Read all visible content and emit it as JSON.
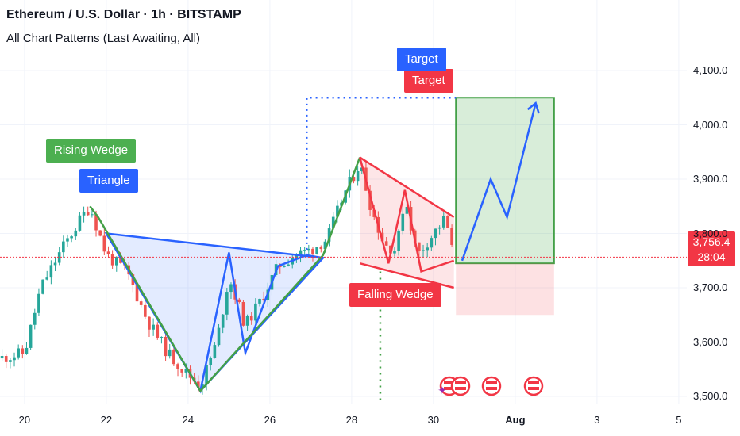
{
  "header": {
    "title": "Ethereum / U.S. Dollar · 1h · BITSTAMP",
    "subtitle": "All Chart Patterns (Last Awaiting, All)"
  },
  "labels": {
    "rising_wedge": "Rising Wedge",
    "triangle": "Triangle",
    "falling_wedge": "Falling Wedge",
    "target_blue": "Target",
    "target_red": "Target"
  },
  "price_tag": {
    "price": "3,756.4",
    "countdown": "28:04"
  },
  "colors": {
    "up": "#26a69a",
    "down": "#ef5350",
    "triangle": "#2962ff",
    "triangle_fill": "rgba(41,98,255,0.13)",
    "rising_wedge": "#43a047",
    "falling_wedge": "#f23645",
    "falling_fill": "rgba(242,54,69,0.13)",
    "target_zone": "rgba(76,175,80,0.22)",
    "stop_zone": "rgba(242,54,69,0.15)",
    "projection": "#2962ff"
  },
  "icons": [
    "us-flag-icon",
    "us-flag-icon",
    "us-flag-icon",
    "us-flag-icon"
  ],
  "chart_data": {
    "type": "candlestick",
    "symbol": "ETH/USD",
    "timeframe": "1h",
    "ylim": [
      3455,
      4160
    ],
    "y_ticks": [
      "4,100.0",
      "4,000.0",
      "3,900.0",
      "3,800.0",
      "3,700.0",
      "3,600.0",
      "3,500.0"
    ],
    "y_tick_values": [
      4100,
      4000,
      3900,
      3800,
      3700,
      3600,
      3500
    ],
    "x_ticks": [
      "20",
      "22",
      "24",
      "26",
      "28",
      "30",
      "Aug",
      "3",
      "5"
    ],
    "x_tick_days": [
      20,
      22,
      24,
      26,
      28,
      30,
      32,
      34,
      36
    ],
    "xlim": [
      19.4,
      37.0
    ],
    "current_price": 3756.4,
    "price_path": [
      [
        19.4,
        3570
      ],
      [
        20.0,
        3580
      ],
      [
        20.4,
        3700
      ],
      [
        20.9,
        3770
      ],
      [
        21.4,
        3830
      ],
      [
        21.6,
        3850
      ],
      [
        22.0,
        3760
      ],
      [
        22.5,
        3730
      ],
      [
        23.0,
        3640
      ],
      [
        23.5,
        3580
      ],
      [
        24.0,
        3540
      ],
      [
        24.3,
        3520
      ],
      [
        24.7,
        3600
      ],
      [
        25.0,
        3720
      ],
      [
        25.4,
        3630
      ],
      [
        25.8,
        3680
      ],
      [
        26.2,
        3740
      ],
      [
        26.6,
        3760
      ],
      [
        27.0,
        3770
      ],
      [
        27.4,
        3790
      ],
      [
        27.8,
        3870
      ],
      [
        28.2,
        3930
      ],
      [
        28.5,
        3840
      ],
      [
        28.8,
        3780
      ],
      [
        29.1,
        3770
      ],
      [
        29.3,
        3870
      ],
      [
        29.6,
        3760
      ],
      [
        30.0,
        3800
      ],
      [
        30.3,
        3830
      ],
      [
        30.5,
        3750
      ]
    ],
    "patterns": {
      "triangle": [
        [
          22.0,
          3800
        ],
        [
          24.3,
          3510
        ],
        [
          27.3,
          3755
        ]
      ],
      "triangle_zigzag": [
        [
          22.0,
          3800
        ],
        [
          24.3,
          3510
        ],
        [
          25.0,
          3765
        ],
        [
          25.4,
          3580
        ],
        [
          26.2,
          3740
        ],
        [
          26.9,
          3760
        ],
        [
          27.3,
          3755
        ]
      ],
      "rising_wedge": [
        [
          21.6,
          3850
        ],
        [
          21.8,
          3830
        ],
        [
          24.3,
          3510
        ],
        [
          27.3,
          3760
        ],
        [
          28.2,
          3940
        ]
      ],
      "falling_wedge": [
        [
          28.2,
          3940
        ],
        [
          30.5,
          3830
        ],
        [
          30.5,
          3700
        ],
        [
          28.2,
          3745
        ]
      ],
      "falling_zigzag": [
        [
          28.2,
          3940
        ],
        [
          28.9,
          3745
        ],
        [
          29.3,
          3880
        ],
        [
          29.7,
          3730
        ],
        [
          30.5,
          3750
        ]
      ]
    },
    "projection_box": {
      "x": [
        30.55,
        32.95
      ],
      "target": 4050,
      "entry": 3745,
      "stop": 3650
    },
    "projection_path": [
      [
        30.7,
        3750
      ],
      [
        31.4,
        3900
      ],
      [
        31.8,
        3830
      ],
      [
        32.5,
        4040
      ]
    ],
    "breakout_level": 4050,
    "breakout_from_day": 26.9,
    "vline_day": 28.7
  }
}
